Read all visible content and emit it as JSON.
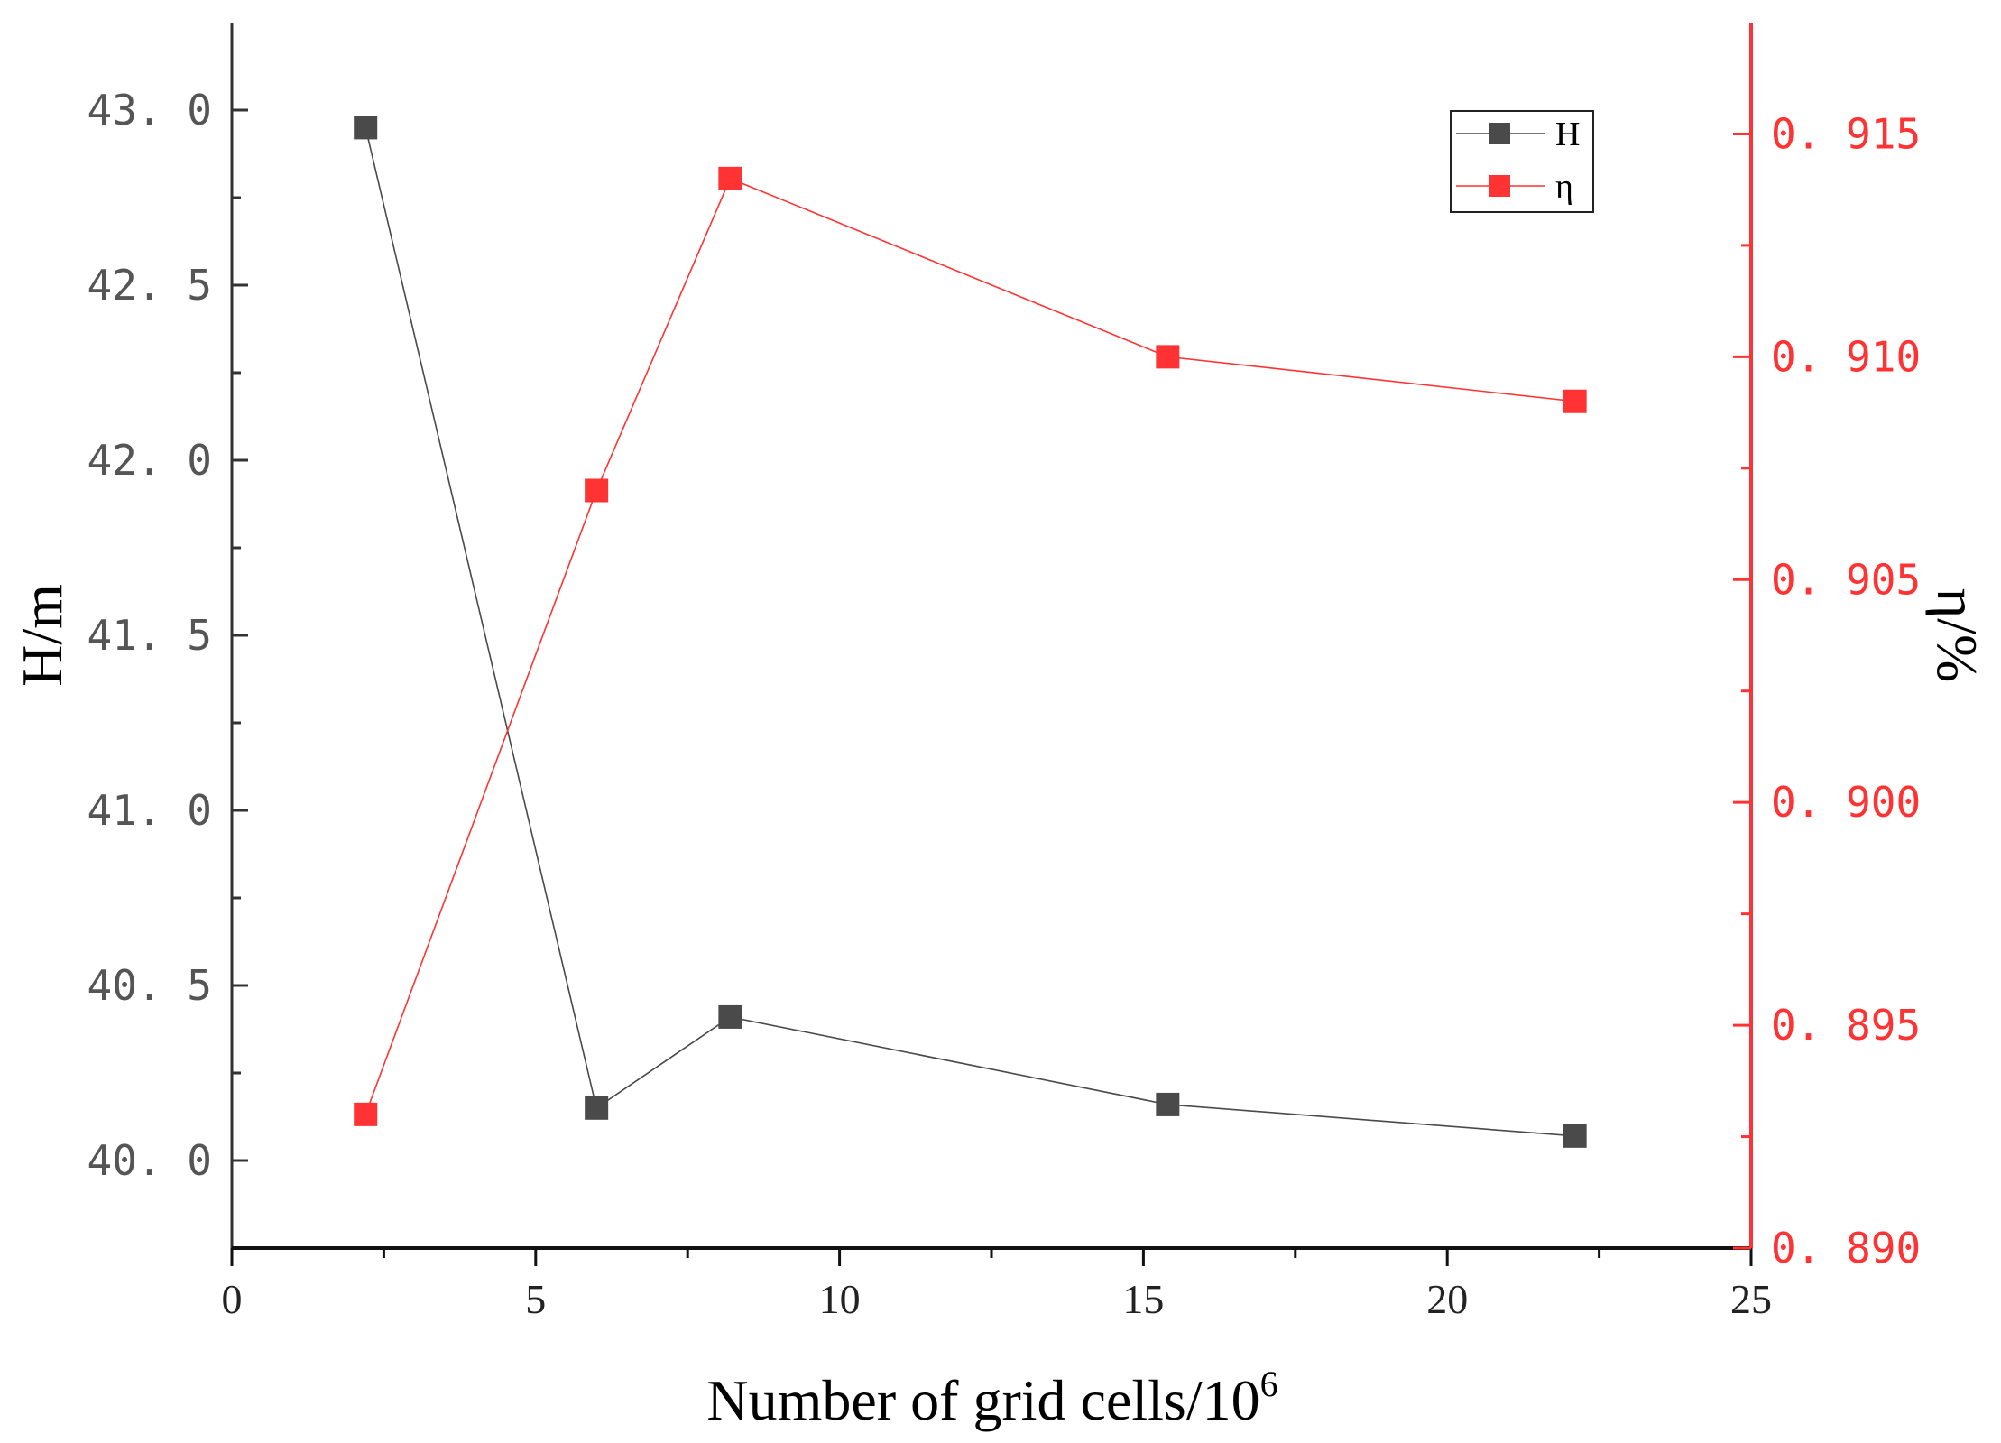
{
  "chart_data": {
    "type": "line",
    "x": [
      2.2,
      6.0,
      8.2,
      15.4,
      22.1
    ],
    "series": [
      {
        "name": "H",
        "axis": "left",
        "color": "#4a4a4a",
        "marker": "square",
        "values": [
          42.95,
          40.15,
          40.41,
          40.16,
          40.07
        ]
      },
      {
        "name": "η",
        "axis": "right",
        "color": "#ff3333",
        "marker": "square",
        "values": [
          0.893,
          0.907,
          0.914,
          0.91,
          0.909
        ]
      }
    ],
    "xlabel": "Number of grid cells/10",
    "xlabel_superscript": "6",
    "ylabel_left": "H/m",
    "ylabel_right": "η/%",
    "xlim": [
      0,
      25
    ],
    "ylim_left": [
      39.75,
      43.25
    ],
    "ylim_right": [
      0.89,
      0.9175
    ],
    "xticks": [
      0,
      5,
      10,
      15,
      20,
      25
    ],
    "yticks_left": [
      40.0,
      40.5,
      41.0,
      41.5,
      42.0,
      42.5,
      43.0
    ],
    "yticks_right": [
      0.89,
      0.895,
      0.9,
      0.905,
      0.91,
      0.915
    ],
    "xtick_labels": [
      "0",
      "5",
      "10",
      "15",
      "20",
      "25"
    ],
    "ytick_labels_left": [
      "40. 0",
      "40. 5",
      "41. 0",
      "41. 5",
      "42. 0",
      "42. 5",
      "43. 0"
    ],
    "ytick_labels_right": [
      "0. 890",
      "0. 895",
      "0. 900",
      "0. 905",
      "0. 910",
      "0. 915"
    ],
    "legend": {
      "position": "top-right",
      "entries": [
        "H",
        "η"
      ]
    },
    "grid": false
  }
}
